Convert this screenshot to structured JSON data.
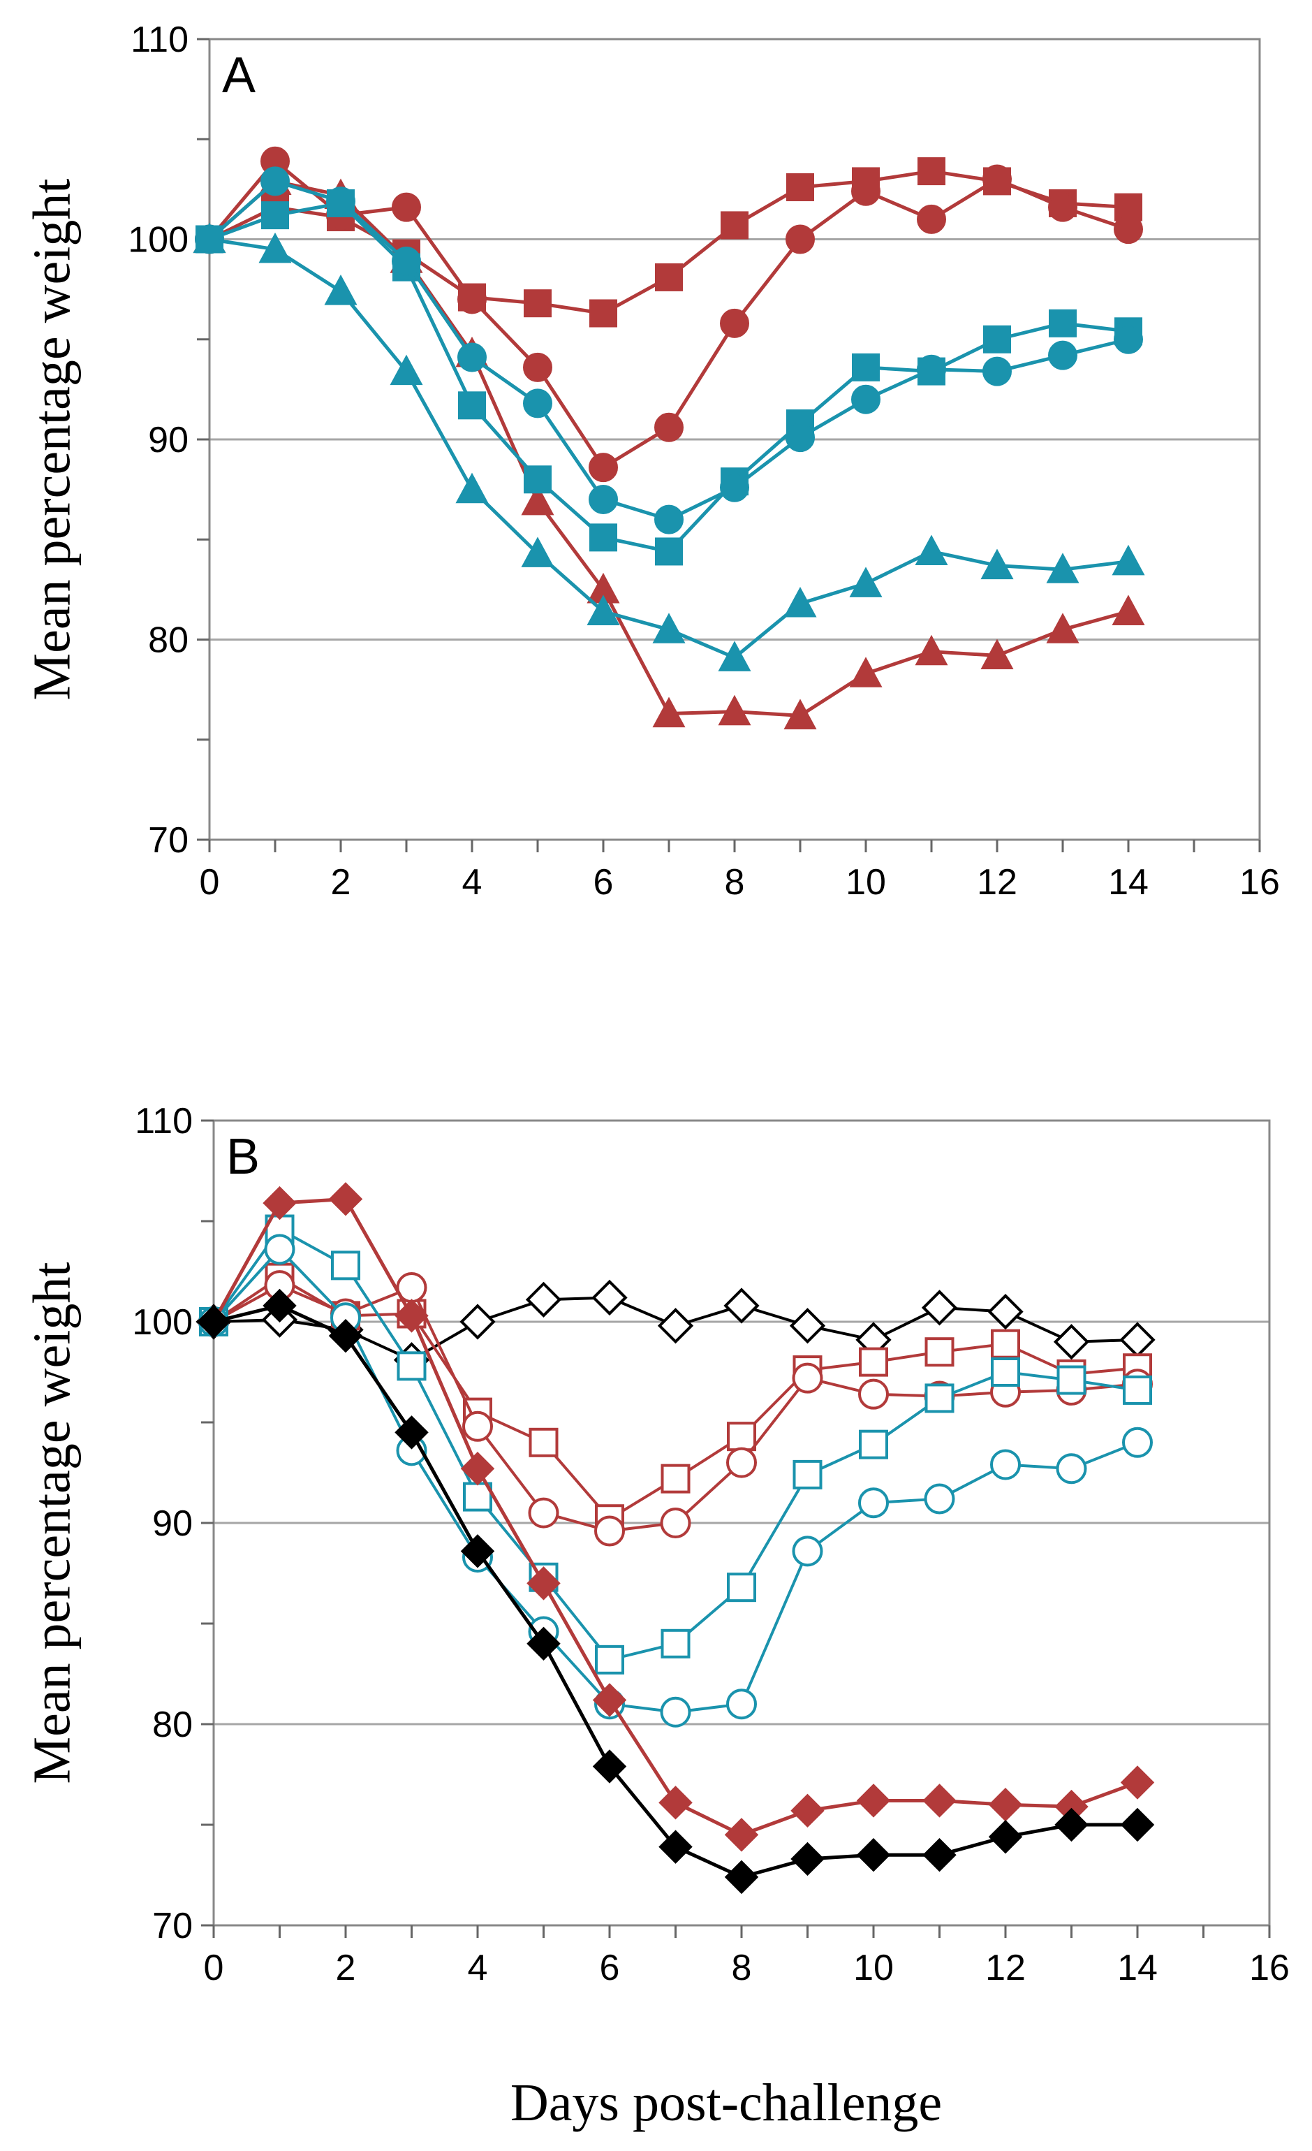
{
  "figure": {
    "shared_xlabel": "Days post-challenge",
    "colors": {
      "red": "#b23a3a",
      "teal": "#1a93ad",
      "black": "#000000",
      "grid": "#a6a6a6"
    }
  },
  "chart_data": [
    {
      "type": "line",
      "panel_label": "A",
      "title": "",
      "xlabel": "",
      "ylabel": "Mean percentage weight",
      "xlim": [
        0,
        16
      ],
      "ylim": [
        70,
        110
      ],
      "x_ticks": [
        "0",
        "2",
        "4",
        "6",
        "8",
        "10",
        "12",
        "14",
        "16"
      ],
      "y_ticks": [
        "70",
        "80",
        "90",
        "100",
        "110"
      ],
      "grid": "horizontal",
      "x": [
        0,
        1,
        2,
        3,
        4,
        5,
        6,
        7,
        8,
        9,
        10,
        11,
        12,
        13,
        14
      ],
      "series": [
        {
          "name": "red-square",
          "color": "#b23a3a",
          "marker": "square",
          "filled": true,
          "values": [
            100,
            101.6,
            101.1,
            99.3,
            97.1,
            96.8,
            96.3,
            98.1,
            100.7,
            102.6,
            102.9,
            103.4,
            102.9,
            101.8,
            101.6
          ]
        },
        {
          "name": "red-circle",
          "color": "#b23a3a",
          "marker": "circle",
          "filled": true,
          "values": [
            100,
            103.9,
            101.2,
            101.6,
            97.0,
            93.6,
            88.6,
            90.6,
            95.8,
            100.0,
            102.4,
            101.0,
            103.0,
            101.6,
            100.5
          ]
        },
        {
          "name": "red-triangle",
          "color": "#b23a3a",
          "marker": "triangle",
          "filled": true,
          "values": [
            100,
            102.9,
            102.2,
            99.0,
            94.3,
            86.9,
            82.5,
            76.3,
            76.4,
            76.2,
            78.3,
            79.4,
            79.2,
            80.5,
            81.4
          ]
        },
        {
          "name": "teal-square",
          "color": "#1a93ad",
          "marker": "square",
          "filled": true,
          "values": [
            100,
            101.2,
            101.8,
            98.6,
            91.7,
            88.0,
            85.1,
            84.4,
            87.9,
            90.8,
            93.6,
            93.4,
            95.0,
            95.8,
            95.4
          ]
        },
        {
          "name": "teal-circle",
          "color": "#1a93ad",
          "marker": "circle",
          "filled": true,
          "values": [
            100,
            102.9,
            101.9,
            98.9,
            94.1,
            91.8,
            87.0,
            86.0,
            87.6,
            90.1,
            92.0,
            93.5,
            93.4,
            94.2,
            95.0
          ]
        },
        {
          "name": "teal-triangle",
          "color": "#1a93ad",
          "marker": "triangle",
          "filled": true,
          "values": [
            100,
            99.5,
            97.4,
            93.4,
            87.5,
            84.3,
            81.4,
            80.5,
            79.1,
            81.8,
            82.8,
            84.4,
            83.7,
            83.5,
            83.9
          ]
        }
      ]
    },
    {
      "type": "line",
      "panel_label": "B",
      "title": "",
      "xlabel": "Days post-challenge",
      "ylabel": "Mean percentage weight",
      "xlim": [
        0,
        16
      ],
      "ylim": [
        70,
        110
      ],
      "x_ticks": [
        "0",
        "2",
        "4",
        "6",
        "8",
        "10",
        "12",
        "14",
        "16"
      ],
      "y_ticks": [
        "70",
        "80",
        "90",
        "100",
        "110"
      ],
      "grid": "horizontal",
      "x": [
        0,
        1,
        2,
        3,
        4,
        5,
        6,
        7,
        8,
        9,
        10,
        11,
        12,
        13,
        14
      ],
      "series": [
        {
          "name": "black-diamond-open",
          "color": "#000000",
          "marker": "diamond",
          "filled": false,
          "values": [
            100,
            100.1,
            99.6,
            98.1,
            100.0,
            101.1,
            101.2,
            99.8,
            100.8,
            99.8,
            99.1,
            100.7,
            100.5,
            99.0,
            99.1
          ]
        },
        {
          "name": "red-square-open",
          "color": "#b23a3a",
          "marker": "square",
          "filled": false,
          "values": [
            100,
            102.2,
            100.3,
            100.4,
            95.5,
            94.0,
            90.2,
            92.2,
            94.3,
            97.6,
            98.0,
            98.5,
            98.9,
            97.4,
            97.7
          ]
        },
        {
          "name": "red-circle-open",
          "color": "#b23a3a",
          "marker": "circle",
          "filled": false,
          "values": [
            100,
            101.8,
            100.4,
            101.7,
            94.8,
            90.5,
            89.6,
            90.0,
            93.0,
            97.2,
            96.4,
            96.3,
            96.5,
            96.6,
            96.9
          ]
        },
        {
          "name": "teal-square-open",
          "color": "#1a93ad",
          "marker": "square",
          "filled": false,
          "values": [
            100,
            104.6,
            102.8,
            97.8,
            91.3,
            87.3,
            83.2,
            84.0,
            86.8,
            92.4,
            93.9,
            96.2,
            97.5,
            97.1,
            96.6
          ]
        },
        {
          "name": "teal-circle-open",
          "color": "#1a93ad",
          "marker": "circle",
          "filled": false,
          "values": [
            100,
            103.6,
            100.2,
            93.6,
            88.3,
            84.6,
            81.0,
            80.6,
            81.0,
            88.6,
            91.0,
            91.2,
            92.9,
            92.7,
            94.0
          ]
        },
        {
          "name": "red-diamond-filled",
          "color": "#b23a3a",
          "marker": "diamond",
          "filled": true,
          "values": [
            100,
            105.9,
            106.1,
            100.3,
            92.7,
            87.0,
            81.2,
            76.1,
            74.5,
            75.7,
            76.2,
            76.2,
            76.0,
            75.9,
            77.1
          ]
        },
        {
          "name": "black-diamond-filled",
          "color": "#000000",
          "marker": "diamond",
          "filled": true,
          "values": [
            100,
            100.8,
            99.3,
            94.5,
            88.6,
            84.0,
            77.9,
            73.9,
            72.4,
            73.3,
            73.5,
            73.5,
            74.4,
            75.0,
            75.0
          ]
        }
      ]
    }
  ]
}
